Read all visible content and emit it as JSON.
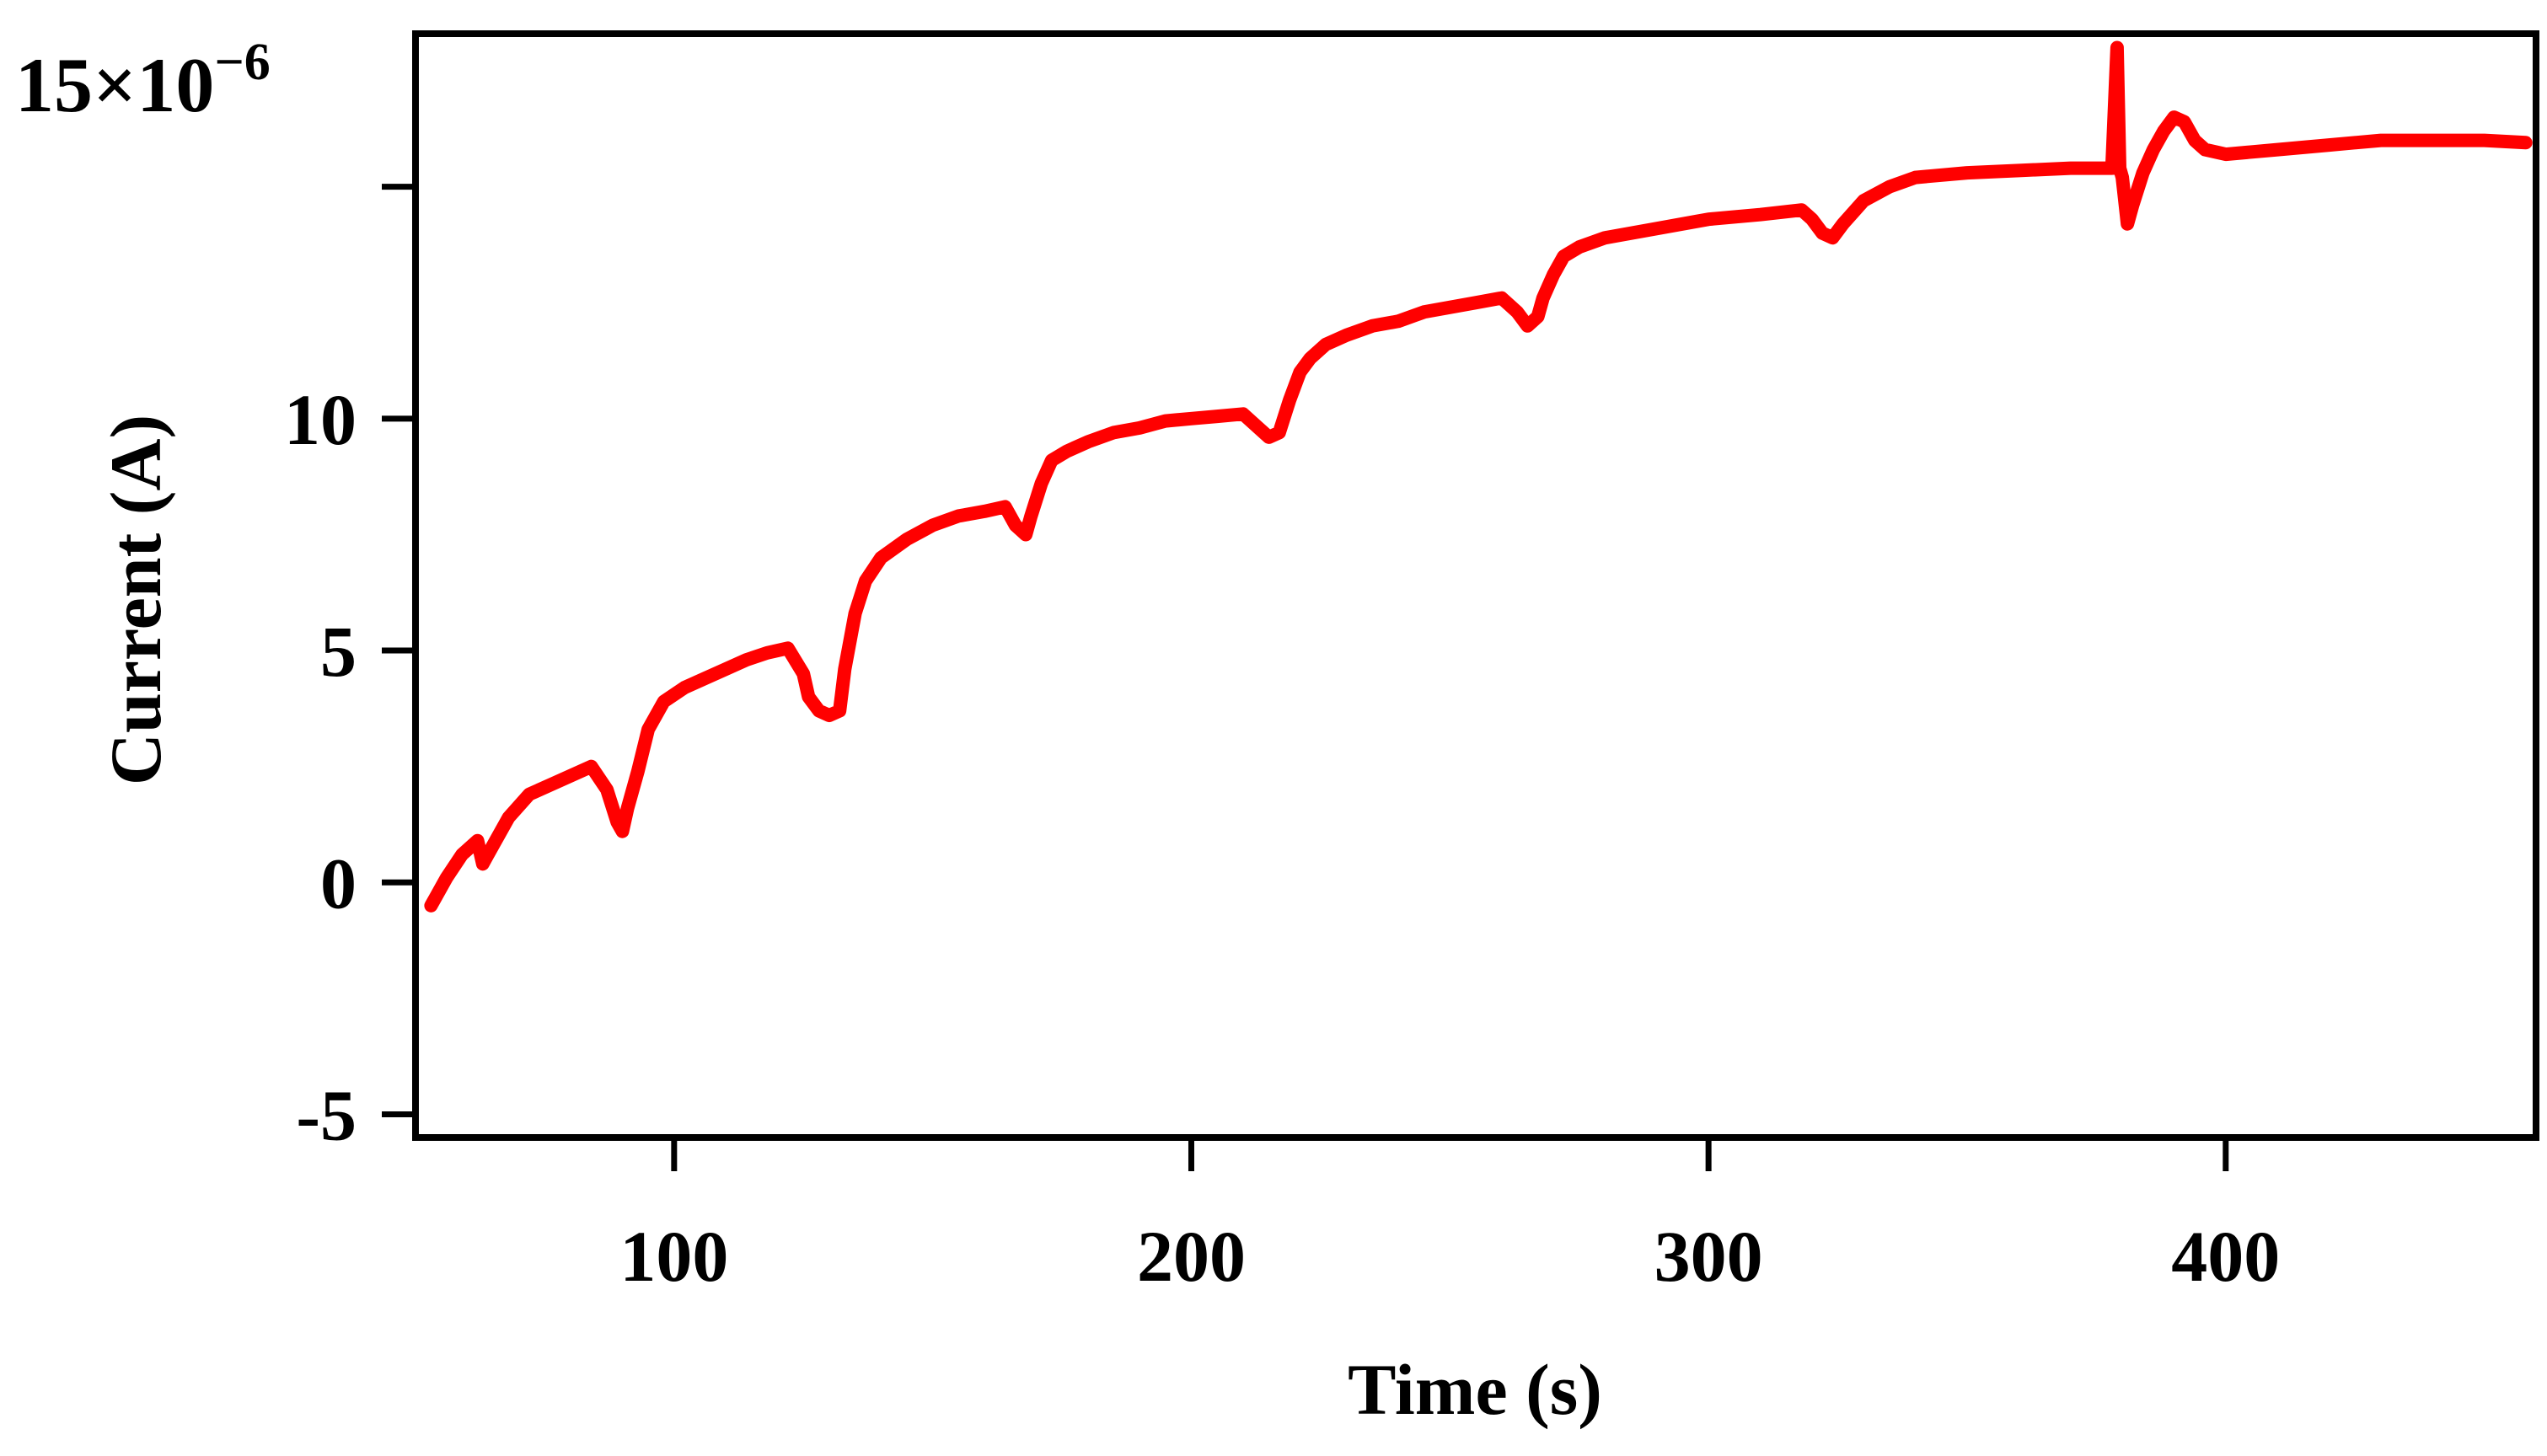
{
  "chart_data": {
    "type": "line",
    "title": "",
    "xlabel": "Time (s)",
    "ylabel": "Current (A)",
    "y_multiplier": {
      "base": "15×10",
      "exponent": "−6"
    },
    "xlim": [
      50,
      460
    ],
    "ylim": [
      -5.5,
      18.3
    ],
    "x_ticks": [
      {
        "value": 100,
        "label": "100"
      },
      {
        "value": 200,
        "label": "200"
      },
      {
        "value": 300,
        "label": "300"
      },
      {
        "value": 400,
        "label": "400"
      }
    ],
    "y_ticks": [
      {
        "value": -5,
        "label": "-5"
      },
      {
        "value": 0,
        "label": "0"
      },
      {
        "value": 5,
        "label": "5"
      },
      {
        "value": 10,
        "label": "10"
      },
      {
        "value": 15,
        "label": ""
      }
    ],
    "grid": false,
    "legend": "none",
    "colors": {
      "series": "#ff0000",
      "axes": "#000000",
      "background": "#ffffff"
    },
    "series": [
      {
        "x": [
          53,
          56,
          59,
          62,
          63,
          64,
          65,
          68,
          72,
          76,
          80,
          84,
          87,
          89,
          90,
          91,
          93,
          95,
          98,
          102,
          106,
          110,
          114,
          118,
          122,
          125,
          126,
          128,
          130,
          132,
          133,
          135,
          137,
          140,
          145,
          150,
          155,
          160,
          164,
          166,
          168,
          169,
          171,
          173,
          176,
          180,
          185,
          190,
          195,
          200,
          205,
          210,
          213,
          215,
          217,
          219,
          221,
          223,
          226,
          230,
          235,
          240,
          245,
          250,
          255,
          260,
          263,
          265,
          267,
          268,
          270,
          272,
          275,
          280,
          290,
          300,
          310,
          318,
          320,
          322,
          324,
          326,
          330,
          335,
          340,
          350,
          360,
          370,
          378,
          379,
          379.5,
          380,
          381,
          382,
          384,
          386,
          388,
          390,
          392,
          394,
          396,
          400,
          410,
          420,
          430,
          440,
          450,
          458
        ],
        "y": [
          -0.5,
          0.1,
          0.6,
          0.9,
          0.4,
          0.6,
          0.8,
          1.4,
          1.9,
          2.1,
          2.3,
          2.5,
          2.0,
          1.3,
          1.1,
          1.6,
          2.4,
          3.3,
          3.9,
          4.2,
          4.4,
          4.6,
          4.8,
          4.95,
          5.05,
          4.5,
          4.0,
          3.7,
          3.6,
          3.7,
          4.6,
          5.8,
          6.5,
          7.0,
          7.4,
          7.7,
          7.9,
          8.0,
          8.1,
          7.7,
          7.5,
          7.9,
          8.6,
          9.1,
          9.3,
          9.5,
          9.7,
          9.8,
          9.95,
          10.0,
          10.05,
          10.1,
          9.8,
          9.6,
          9.7,
          10.4,
          11.0,
          11.3,
          11.6,
          11.8,
          12.0,
          12.1,
          12.3,
          12.4,
          12.5,
          12.6,
          12.3,
          12.0,
          12.2,
          12.6,
          13.1,
          13.5,
          13.7,
          13.9,
          14.1,
          14.3,
          14.4,
          14.5,
          14.3,
          14.0,
          13.9,
          14.2,
          14.7,
          15.0,
          15.2,
          15.3,
          15.35,
          15.4,
          15.4,
          18.0,
          15.4,
          15.2,
          14.2,
          14.6,
          15.3,
          15.8,
          16.2,
          16.5,
          16.4,
          16.0,
          15.8,
          15.7,
          15.8,
          15.9,
          16.0,
          16.0,
          16.0,
          15.95
        ]
      }
    ]
  }
}
